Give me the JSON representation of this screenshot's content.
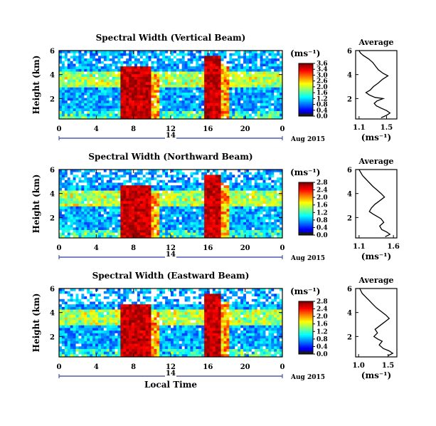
{
  "chart_data": [
    {
      "type": "heatmap",
      "title": "Spectral Width (Vertical Beam)",
      "ylabel": "Height (km)",
      "xticks": [
        "0",
        "4",
        "8",
        "12",
        "16",
        "20",
        "0"
      ],
      "yticks": [
        "2",
        "4",
        "6"
      ],
      "xlim": [
        0,
        24
      ],
      "ylim": [
        0.3,
        6
      ],
      "day_label": "14",
      "date_label": "Aug 2015",
      "colorbar": {
        "unit": "(ms⁻¹)",
        "ticks": [
          "3.6",
          "3.4",
          "3.0",
          "2.6",
          "2.0",
          "1.6",
          "1.2",
          "0.8",
          "0.4",
          "0.0"
        ]
      },
      "profile": {
        "title": "Average",
        "xlabel": "(ms⁻¹)",
        "xticks": [
          "1.1",
          "1.5"
        ],
        "xlim": [
          1.05,
          1.65
        ],
        "yticks": [
          "2",
          "4",
          "6"
        ],
        "ylim": [
          0.3,
          6
        ],
        "points": [
          [
            1.42,
            0.4
          ],
          [
            1.5,
            0.6
          ],
          [
            1.55,
            0.8
          ],
          [
            1.5,
            1.0
          ],
          [
            1.42,
            1.2
          ],
          [
            1.35,
            1.4
          ],
          [
            1.32,
            1.6
          ],
          [
            1.36,
            1.8
          ],
          [
            1.45,
            2.0
          ],
          [
            1.33,
            2.1
          ],
          [
            1.25,
            2.3
          ],
          [
            1.2,
            2.5
          ],
          [
            1.26,
            2.7
          ],
          [
            1.31,
            3.0
          ],
          [
            1.38,
            3.3
          ],
          [
            1.44,
            3.6
          ],
          [
            1.52,
            3.9
          ],
          [
            1.45,
            4.1
          ],
          [
            1.38,
            4.4
          ],
          [
            1.34,
            4.7
          ],
          [
            1.3,
            5.0
          ],
          [
            1.24,
            5.3
          ],
          [
            1.16,
            5.6
          ],
          [
            1.12,
            5.8
          ],
          [
            1.1,
            6.0
          ]
        ]
      }
    },
    {
      "type": "heatmap",
      "title": "Spectral Width (Northward Beam)",
      "ylabel": "Height (km)",
      "xticks": [
        "0",
        "4",
        "8",
        "12",
        "16",
        "20",
        "0"
      ],
      "yticks": [
        "2",
        "4",
        "6"
      ],
      "xlim": [
        0,
        24
      ],
      "ylim": [
        0.3,
        6
      ],
      "day_label": "14",
      "date_label": "Aug 2015",
      "colorbar": {
        "unit": "(ms⁻¹)",
        "ticks": [
          "2.8",
          "2.4",
          "2.0",
          "1.6",
          "1.2",
          "0.8",
          "0.4",
          "0.0"
        ]
      },
      "profile": {
        "title": "Average",
        "xlabel": "(ms⁻¹)",
        "xticks": [
          "1.1",
          "1.6"
        ],
        "xlim": [
          1.05,
          1.65
        ],
        "yticks": [
          "2",
          "4",
          "6"
        ],
        "ylim": [
          0.3,
          6
        ],
        "points": [
          [
            1.48,
            0.4
          ],
          [
            1.55,
            0.6
          ],
          [
            1.5,
            0.8
          ],
          [
            1.43,
            1.0
          ],
          [
            1.4,
            1.3
          ],
          [
            1.46,
            1.6
          ],
          [
            1.42,
            1.9
          ],
          [
            1.36,
            2.1
          ],
          [
            1.3,
            2.3
          ],
          [
            1.25,
            2.5
          ],
          [
            1.28,
            2.8
          ],
          [
            1.33,
            3.1
          ],
          [
            1.4,
            3.4
          ],
          [
            1.47,
            3.7
          ],
          [
            1.42,
            4.0
          ],
          [
            1.36,
            4.3
          ],
          [
            1.3,
            4.6
          ],
          [
            1.25,
            4.9
          ],
          [
            1.2,
            5.2
          ],
          [
            1.15,
            5.5
          ],
          [
            1.12,
            5.8
          ],
          [
            1.1,
            6.0
          ]
        ]
      }
    },
    {
      "type": "heatmap",
      "title": "Spectral Width (Eastward Beam)",
      "ylabel": "Height (km)",
      "xticks": [
        "0",
        "4",
        "8",
        "12",
        "16",
        "20",
        "0"
      ],
      "yticks": [
        "2",
        "4",
        "6"
      ],
      "xlim": [
        0,
        24
      ],
      "ylim": [
        0.3,
        6
      ],
      "day_label": "14",
      "date_label": "Aug 2015",
      "xlabel": "Local Time",
      "colorbar": {
        "unit": "(ms⁻¹)",
        "ticks": [
          "2.8",
          "2.4",
          "2.0",
          "1.6",
          "1.2",
          "0.8",
          "0.4",
          "0.0"
        ]
      },
      "profile": {
        "title": "Average",
        "xlabel": "(ms⁻¹)",
        "xticks": [
          "1.0",
          "1.5"
        ],
        "xlim": [
          0.95,
          1.65
        ],
        "yticks": [
          "2",
          "4",
          "6"
        ],
        "ylim": [
          0.3,
          6
        ],
        "points": [
          [
            1.5,
            0.4
          ],
          [
            1.58,
            0.6
          ],
          [
            1.52,
            0.8
          ],
          [
            1.42,
            1.0
          ],
          [
            1.35,
            1.3
          ],
          [
            1.4,
            1.6
          ],
          [
            1.32,
            1.8
          ],
          [
            1.26,
            2.0
          ],
          [
            1.32,
            2.3
          ],
          [
            1.28,
            2.6
          ],
          [
            1.36,
            2.9
          ],
          [
            1.44,
            3.2
          ],
          [
            1.52,
            3.5
          ],
          [
            1.46,
            3.8
          ],
          [
            1.38,
            4.1
          ],
          [
            1.3,
            4.4
          ],
          [
            1.24,
            4.7
          ],
          [
            1.18,
            5.0
          ],
          [
            1.12,
            5.3
          ],
          [
            1.06,
            5.6
          ],
          [
            1.04,
            5.8
          ],
          [
            1.02,
            6.0
          ]
        ]
      }
    }
  ]
}
